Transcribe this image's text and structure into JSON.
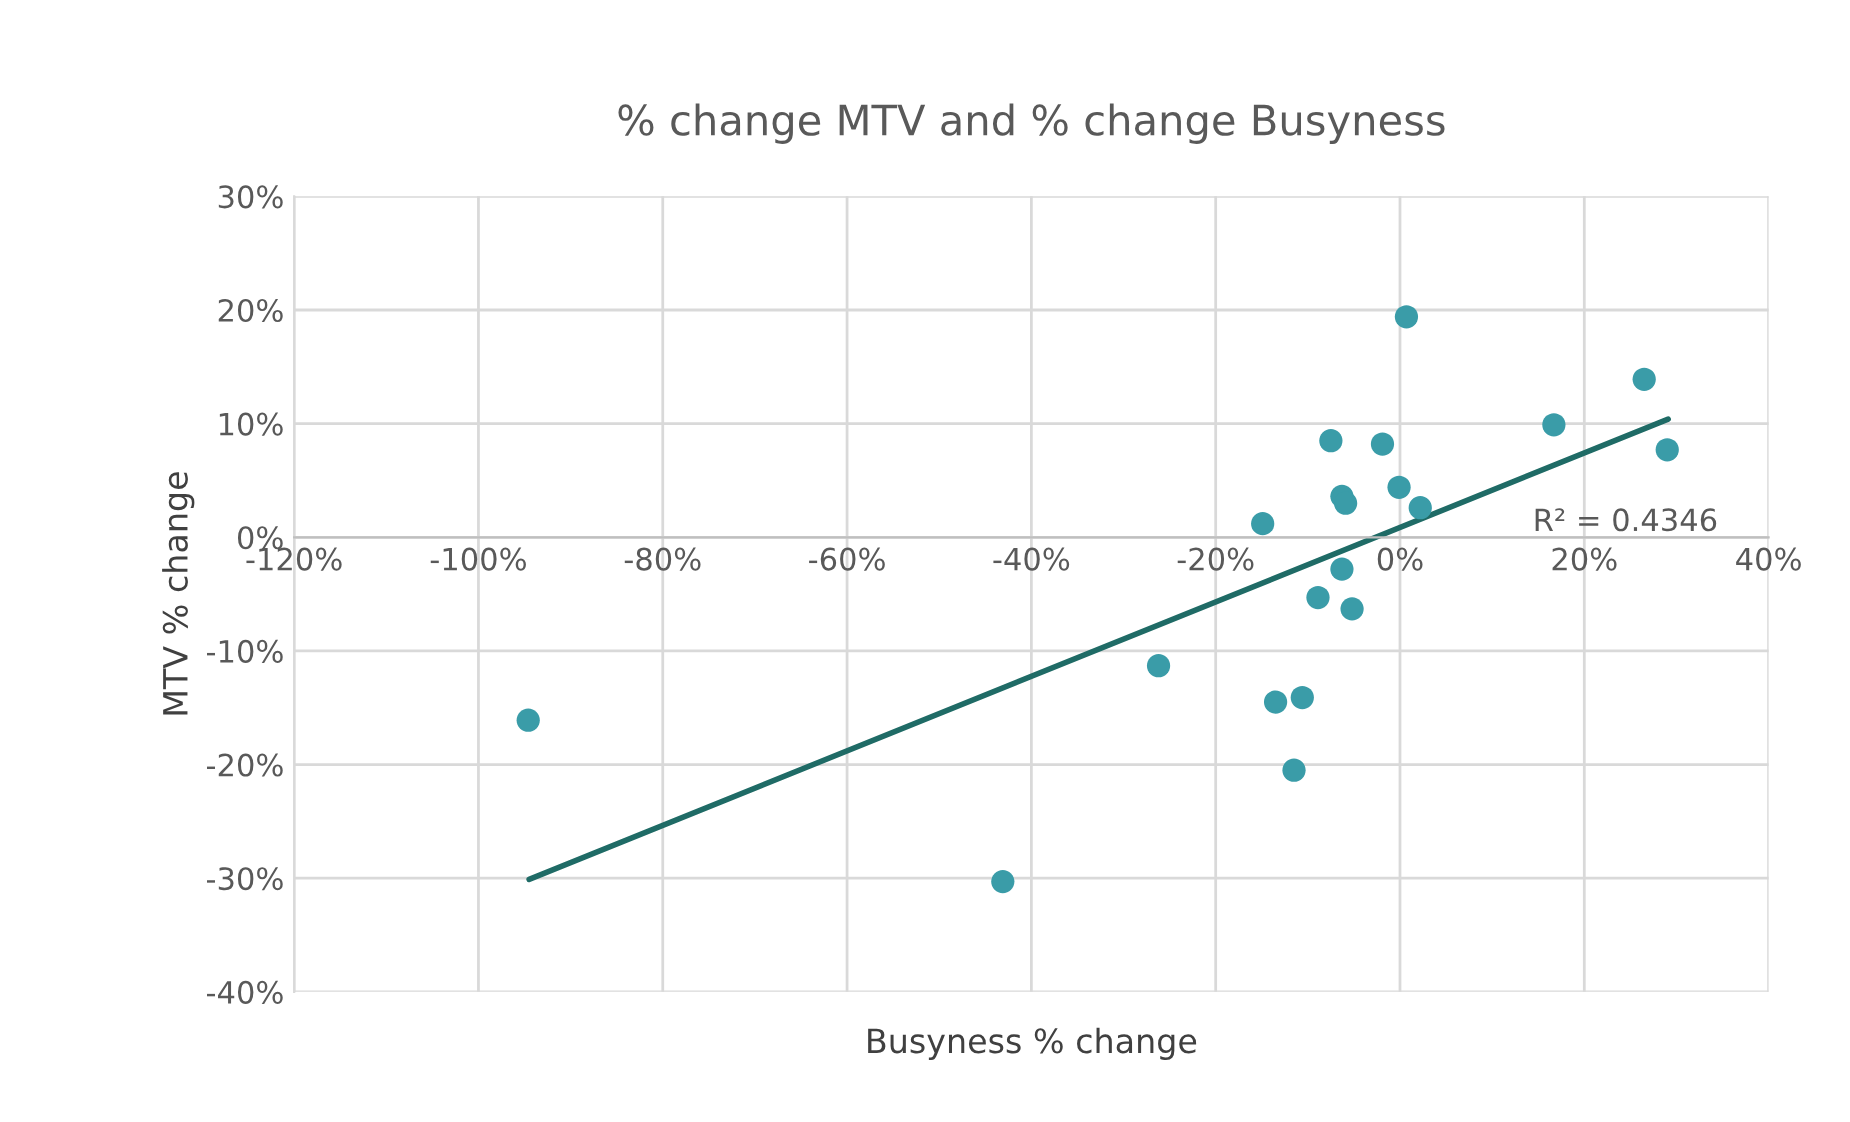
{
  "chart_data": {
    "type": "scatter",
    "title": "% change MTV and % change Busyness",
    "xlabel": "Busyness % change",
    "ylabel": "MTV % change",
    "xlim": [
      -120,
      40
    ],
    "ylim": [
      -40,
      30
    ],
    "xticks": [
      {
        "value": -120,
        "label": "-120%"
      },
      {
        "value": -100,
        "label": "-100%"
      },
      {
        "value": -80,
        "label": "-80%"
      },
      {
        "value": -60,
        "label": "-60%"
      },
      {
        "value": -40,
        "label": "-40%"
      },
      {
        "value": -20,
        "label": "-20%"
      },
      {
        "value": 0,
        "label": "0%"
      },
      {
        "value": 20,
        "label": "20%"
      },
      {
        "value": 40,
        "label": "40%"
      }
    ],
    "yticks": [
      {
        "value": -40,
        "label": "-40%"
      },
      {
        "value": -30,
        "label": "-30%"
      },
      {
        "value": -20,
        "label": "-20%"
      },
      {
        "value": -10,
        "label": "-10%"
      },
      {
        "value": 0,
        "label": "0%"
      },
      {
        "value": 10,
        "label": "10%"
      },
      {
        "value": 20,
        "label": "20%"
      },
      {
        "value": 30,
        "label": "30%"
      }
    ],
    "grid": true,
    "series": [
      {
        "marker": "circle",
        "color": "#3a9ca8",
        "x": [
          -94.6,
          -43.1,
          -26.2,
          0.7,
          26.5,
          16.7,
          29.0,
          -7.5,
          -1.9,
          -0.1,
          -6.3,
          -5.9,
          2.2,
          -14.9,
          -6.3,
          -8.9,
          -5.2,
          -13.5,
          -10.6,
          -11.5
        ],
        "values": [
          -16.1,
          -30.3,
          -11.3,
          19.4,
          13.9,
          9.9,
          7.7,
          8.5,
          8.2,
          4.4,
          3.6,
          3.0,
          2.6,
          1.2,
          -2.8,
          -5.3,
          -6.3,
          -14.5,
          -14.1,
          -20.5
        ]
      },
      {
        "type": "line",
        "color": "#1f6b66",
        "x": [
          -94.5,
          29.1
        ],
        "values": [
          -30.1,
          10.4
        ]
      }
    ],
    "annotations": [
      "R² = 0.4346"
    ]
  }
}
